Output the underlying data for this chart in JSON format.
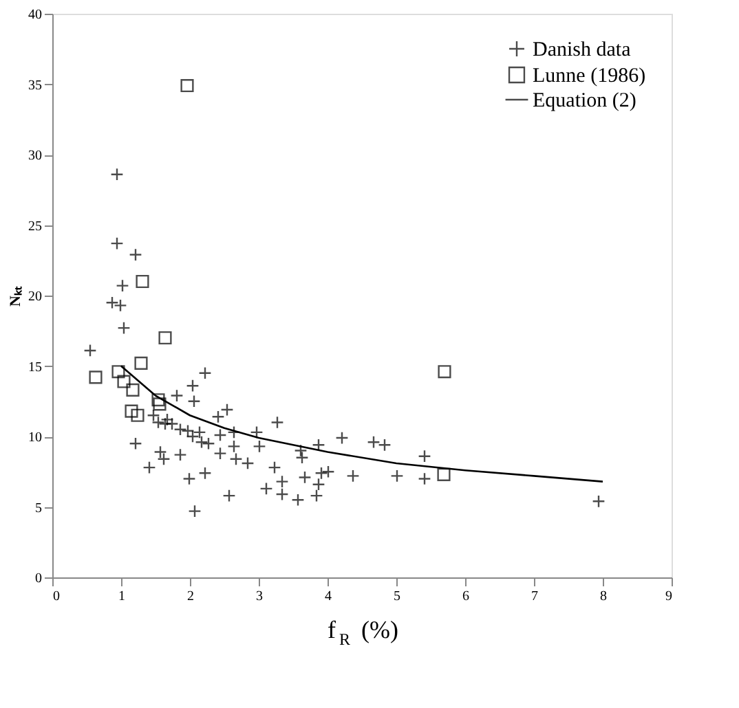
{
  "chart_data": {
    "type": "scatter",
    "xlabel": "f$_{R}$ (%)",
    "ylabel": "Nₖₜ",
    "xlim": [
      0,
      9
    ],
    "xticks": [
      0,
      1,
      2,
      3,
      4,
      5,
      6,
      7,
      8,
      9
    ],
    "ylim": [
      0,
      40
    ],
    "yticks": [
      0,
      5,
      10,
      15,
      20,
      25,
      30,
      35,
      40
    ],
    "grid": false,
    "legend": "top right",
    "series": [
      {
        "name": "Danish data",
        "type": "scatter",
        "marker": "cross",
        "color": "#000000",
        "x": [
          0.94,
          0.94,
          1.21,
          1.02,
          0.87,
          0.99,
          1.04,
          0.55,
          1.21,
          1.41,
          1.57,
          1.62,
          1.86,
          1.99,
          2.07,
          2.22,
          2.22,
          2.04,
          2.06,
          1.81,
          1.47,
          1.54,
          1.64,
          1.74,
          1.86,
          1.97,
          2.04,
          2.14,
          2.17,
          2.27,
          1.67,
          2.41,
          2.54,
          3.27,
          2.44,
          2.64,
          2.97,
          2.64,
          3.01,
          2.44,
          2.67,
          2.84,
          2.57,
          3.23,
          3.11,
          3.34,
          3.34,
          3.57,
          3.61,
          3.63,
          3.67,
          3.87,
          3.84,
          3.87,
          3.91,
          4.01,
          4.21,
          4.37,
          4.67,
          4.83,
          5.01,
          5.41,
          5.41,
          7.94
        ],
        "values": [
          28.6,
          23.7,
          22.9,
          20.7,
          19.5,
          19.3,
          17.7,
          16.1,
          9.5,
          7.8,
          8.9,
          8.4,
          8.7,
          7.0,
          4.7,
          7.4,
          14.5,
          13.6,
          12.5,
          12.9,
          11.5,
          11.0,
          10.9,
          10.9,
          10.5,
          10.4,
          10.0,
          10.3,
          9.6,
          9.5,
          11.2,
          11.4,
          11.9,
          11.0,
          10.1,
          10.3,
          10.3,
          9.3,
          9.3,
          8.8,
          8.4,
          8.1,
          5.8,
          7.8,
          6.3,
          6.8,
          5.9,
          5.5,
          9.0,
          8.5,
          7.1,
          9.4,
          5.8,
          6.6,
          7.4,
          7.5,
          9.9,
          7.2,
          9.6,
          9.4,
          7.2,
          8.6,
          7.0,
          5.4
        ]
      },
      {
        "name": "Lunne (1986)",
        "type": "scatter",
        "marker": "square",
        "color": "#000000",
        "x": [
          1.31,
          1.64,
          0.63,
          0.96,
          1.04,
          1.29,
          1.17,
          1.15,
          1.24,
          1.54,
          1.56,
          1.96,
          5.69,
          5.7
        ],
        "values": [
          21.0,
          17.0,
          14.2,
          14.6,
          13.9,
          15.2,
          13.3,
          11.8,
          11.5,
          12.6,
          12.3,
          34.9,
          7.3,
          14.6
        ]
      },
      {
        "name": "Equation (2)",
        "type": "line",
        "line_style": "solid",
        "color": "#000000",
        "x": [
          1,
          1.5,
          2,
          2.5,
          3,
          4,
          5,
          6,
          7,
          8
        ],
        "values": [
          15.0,
          12.9,
          11.5,
          10.6,
          9.9,
          8.9,
          8.1,
          7.6,
          7.2,
          6.8
        ]
      }
    ]
  }
}
